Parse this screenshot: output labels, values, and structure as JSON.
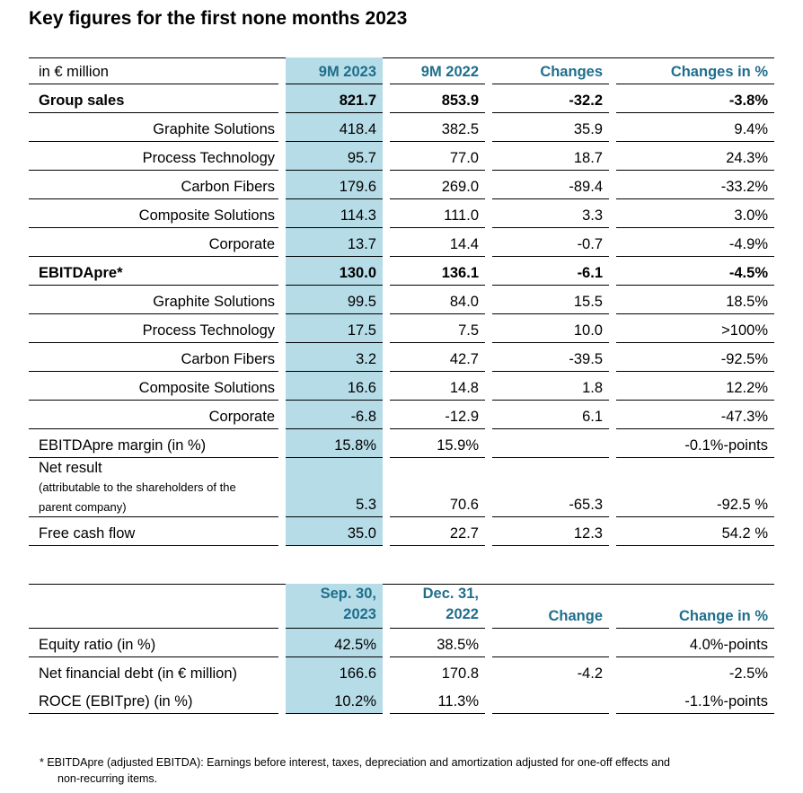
{
  "title": "Key figures for the first none months 2023",
  "table1": {
    "headers": [
      "in € million",
      "9M 2023",
      "9M 2022",
      "Changes",
      "Changes in %"
    ],
    "rows": [
      {
        "label": "Group sales",
        "v2023": "821.7",
        "v2022": "853.9",
        "change": "-32.2",
        "change_pct": "-3.8%"
      },
      {
        "label": "Graphite Solutions",
        "v2023": "418.4",
        "v2022": "382.5",
        "change": "35.9",
        "change_pct": "9.4%"
      },
      {
        "label": "Process Technology",
        "v2023": "95.7",
        "v2022": "77.0",
        "change": "18.7",
        "change_pct": "24.3%"
      },
      {
        "label": "Carbon Fibers",
        "v2023": "179.6",
        "v2022": "269.0",
        "change": "-89.4",
        "change_pct": "-33.2%"
      },
      {
        "label": "Composite Solutions",
        "v2023": "114.3",
        "v2022": "111.0",
        "change": "3.3",
        "change_pct": "3.0%"
      },
      {
        "label": "Corporate",
        "v2023": "13.7",
        "v2022": "14.4",
        "change": "-0.7",
        "change_pct": "-4.9%"
      },
      {
        "label": "EBITDApre*",
        "v2023": "130.0",
        "v2022": "136.1",
        "change": "-6.1",
        "change_pct": "-4.5%"
      },
      {
        "label": "Graphite Solutions",
        "v2023": "99.5",
        "v2022": "84.0",
        "change": "15.5",
        "change_pct": "18.5%"
      },
      {
        "label": "Process Technology",
        "v2023": "17.5",
        "v2022": "7.5",
        "change": "10.0",
        "change_pct": ">100%"
      },
      {
        "label": "Carbon Fibers",
        "v2023": "3.2",
        "v2022": "42.7",
        "change": "-39.5",
        "change_pct": "-92.5%"
      },
      {
        "label": "Composite Solutions",
        "v2023": "16.6",
        "v2022": "14.8",
        "change": "1.8",
        "change_pct": "12.2%"
      },
      {
        "label": "Corporate",
        "v2023": "-6.8",
        "v2022": "-12.9",
        "change": "6.1",
        "change_pct": "-47.3%"
      },
      {
        "label": "EBITDApre margin (in %)",
        "v2023": "15.8%",
        "v2022": "15.9%",
        "change": "",
        "change_pct": "-0.1%-points"
      },
      {
        "label": "Net result",
        "label_sub1": "(attributable to the shareholders of the",
        "label_sub2": "parent company)",
        "v2023": "5.3",
        "v2022": "70.6",
        "change": "-65.3",
        "change_pct": "-92.5 %"
      },
      {
        "label": "Free cash flow",
        "v2023": "35.0",
        "v2022": "22.7",
        "change": "12.3",
        "change_pct": "54.2 %"
      }
    ]
  },
  "table2": {
    "headers": {
      "col1_line1": "Sep. 30,",
      "col1_line2": "2023",
      "col2_line1": "Dec. 31,",
      "col2_line2": "2022",
      "col3": "Change",
      "col4": "Change in %"
    },
    "rows": [
      {
        "label": "Equity ratio (in %)",
        "v1": "42.5%",
        "v2": "38.5%",
        "change": "",
        "change_pct": "4.0%-points"
      },
      {
        "label": "Net financial debt (in € million)",
        "v1": "166.6",
        "v2": "170.8",
        "change": "-4.2",
        "change_pct": "-2.5%"
      },
      {
        "label": "ROCE (EBITpre) (in %)",
        "v1": "10.2%",
        "v2": "11.3%",
        "change": "",
        "change_pct": "-1.1%-points"
      }
    ]
  },
  "footnote": {
    "line1": "* EBITDApre (adjusted EBITDA): Earnings before interest, taxes, depreciation and amortization adjusted for one-off effects and",
    "line2": "non-recurring items."
  },
  "colors": {
    "highlight": "#b6dce8",
    "header_text": "#1f6e8c"
  }
}
